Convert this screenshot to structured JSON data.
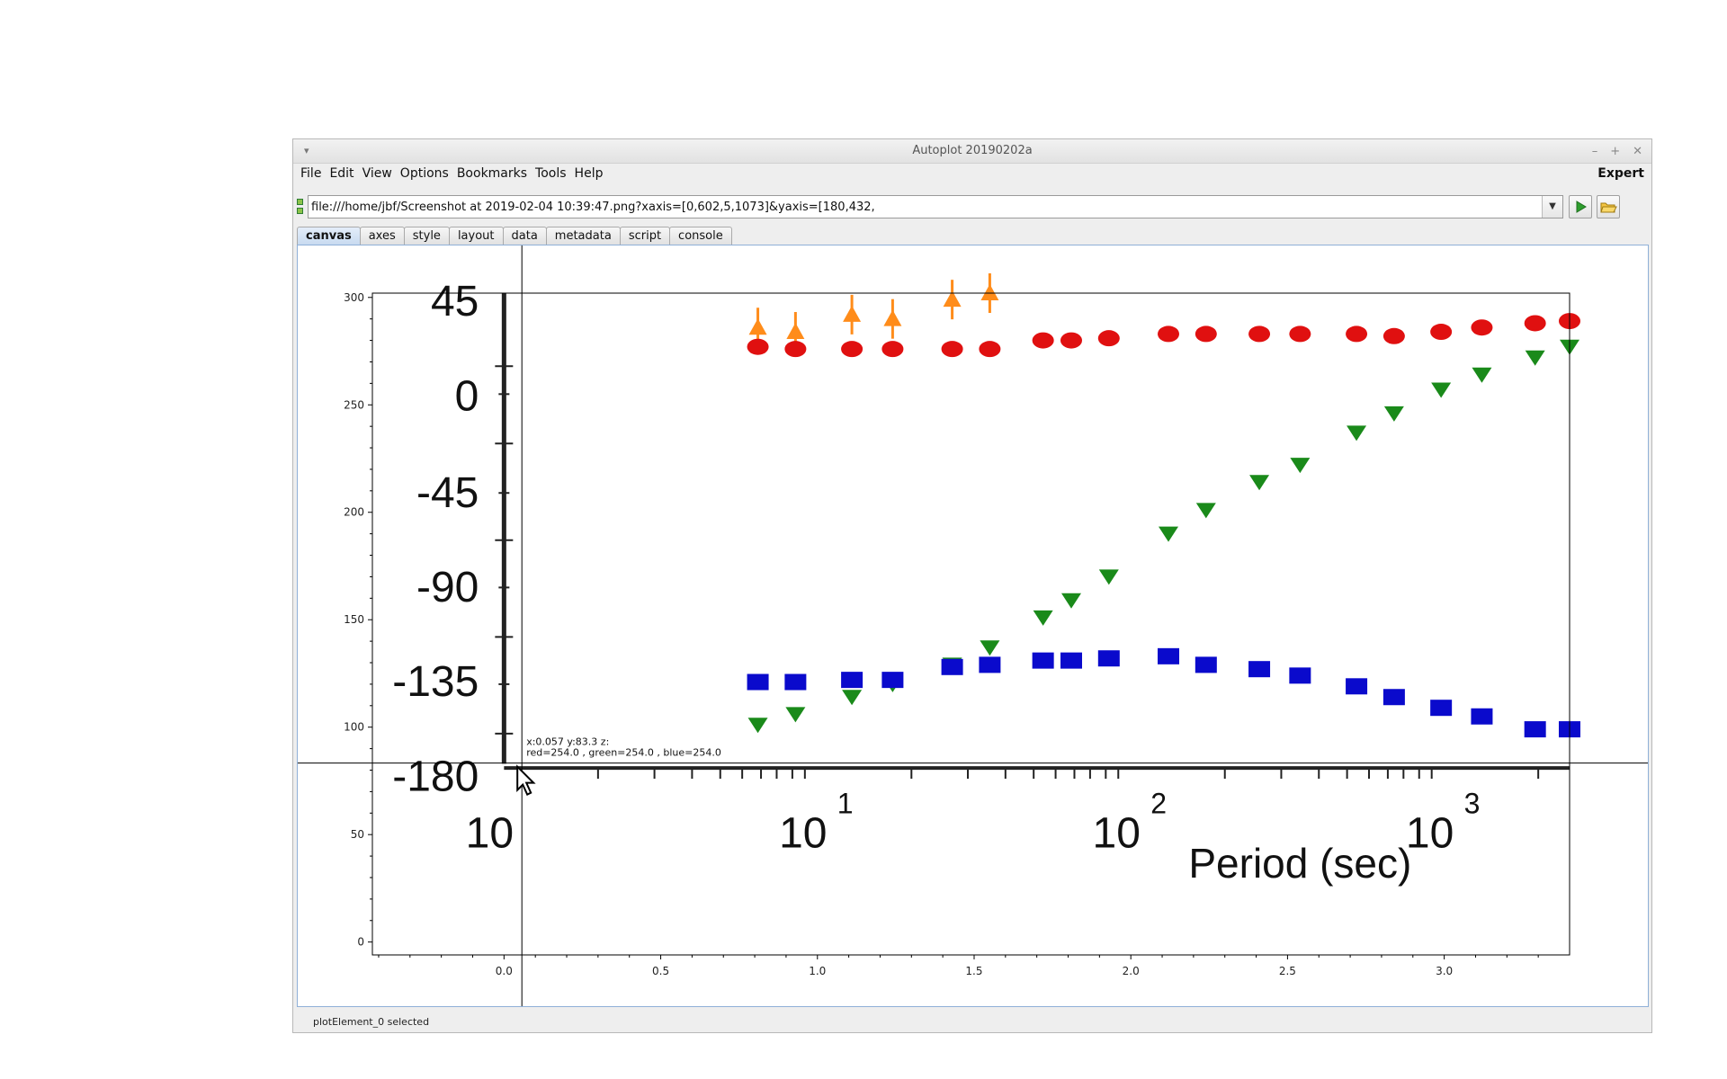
{
  "window": {
    "title": "Autoplot 20190202a",
    "controls": [
      "–",
      "+",
      "✕"
    ]
  },
  "menubar": {
    "items": [
      "File",
      "Edit",
      "View",
      "Options",
      "Bookmarks",
      "Tools",
      "Help"
    ],
    "expert_label": "Expert"
  },
  "address": {
    "value": "file:///home/jbf/Screenshot at 2019-02-04 10:39:47.png?xaxis=[0,602,5,1073]&yaxis=[180,432,"
  },
  "icons": {
    "dropdown": "chevron-down-icon",
    "run": "play-icon",
    "open": "folder-open-icon",
    "window_menu": "window-menu-icon",
    "cursor": "mouse-pointer-icon"
  },
  "tabs": [
    "canvas",
    "axes",
    "style",
    "layout",
    "data",
    "metadata",
    "script",
    "console"
  ],
  "active_tab": "canvas",
  "crosshair": {
    "line1": "x:0.057  y:83.3  z:",
    "line2": "red=254.0 , green=254.0 , blue=254.0"
  },
  "status": "plotElement_0 selected",
  "chart_data": {
    "type": "scatter",
    "xlim": [
      -0.42,
      3.4
    ],
    "ylim": [
      -6,
      302
    ],
    "x_ticks": [
      0.0,
      0.5,
      1.0,
      1.5,
      2.0,
      2.5,
      3.0
    ],
    "x_tick_labels": [
      "0.0",
      "0.5",
      "1.0",
      "1.5",
      "2.0",
      "2.5",
      "3.0"
    ],
    "y_ticks": [
      0,
      50,
      100,
      150,
      200,
      250,
      300
    ],
    "y_tick_labels": [
      "0",
      "50",
      "100",
      "150",
      "200",
      "250",
      "300"
    ],
    "embedded_image": {
      "y_tick_labels": [
        "45",
        "0",
        "-45",
        "-90",
        "-135",
        "-180"
      ],
      "x_tick_labels": [
        "10",
        "10",
        "10",
        "10"
      ],
      "x_tick_exponents": [
        "",
        "1",
        "2",
        "3"
      ],
      "xlabel": "Period (sec)",
      "series": [
        {
          "color": "#ff8c1a",
          "marker": "triangle-up-errorbar",
          "x": [
            0.81,
            0.93,
            1.11,
            1.24,
            1.43,
            1.55
          ],
          "y": [
            286,
            284,
            292,
            290,
            299,
            302
          ]
        },
        {
          "color": "#e01010",
          "marker": "circle",
          "x": [
            0.81,
            0.93,
            1.11,
            1.24,
            1.43,
            1.55,
            1.72,
            1.81,
            1.93,
            2.12,
            2.24,
            2.41,
            2.54,
            2.72,
            2.84,
            2.99,
            3.12,
            3.29,
            3.4
          ],
          "y": [
            277,
            276,
            276,
            276,
            276,
            276,
            280,
            280,
            281,
            283,
            283,
            283,
            283,
            283,
            282,
            284,
            286,
            288,
            289
          ]
        },
        {
          "color": "#1a8a1a",
          "marker": "triangle-down",
          "x": [
            0.81,
            0.93,
            1.11,
            1.24,
            1.43,
            1.55,
            1.72,
            1.81,
            1.93,
            2.12,
            2.24,
            2.41,
            2.54,
            2.72,
            2.84,
            2.99,
            3.12,
            3.29,
            3.4
          ],
          "y": [
            101,
            106,
            114,
            120,
            129,
            137,
            151,
            159,
            170,
            190,
            201,
            214,
            222,
            237,
            246,
            257,
            264,
            272,
            277
          ]
        },
        {
          "color": "#0a0acc",
          "marker": "square",
          "x": [
            0.81,
            0.93,
            1.11,
            1.24,
            1.43,
            1.55,
            1.72,
            1.81,
            1.93,
            2.12,
            2.24,
            2.41,
            2.54,
            2.72,
            2.84,
            2.99,
            3.12,
            3.29,
            3.4
          ],
          "y": [
            121,
            121,
            122,
            122,
            128,
            129,
            131,
            131,
            132,
            133,
            129,
            127,
            124,
            119,
            114,
            109,
            105,
            99,
            99
          ]
        }
      ]
    }
  }
}
